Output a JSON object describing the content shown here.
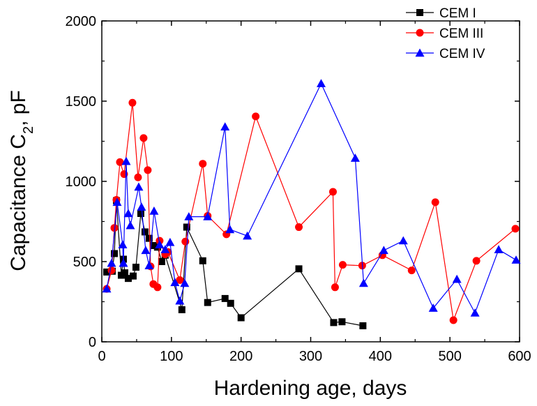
{
  "chart_data": {
    "type": "line",
    "title": "",
    "xlabel": "Hardening age, days",
    "ylabel_parts": [
      "Capacitance C",
      "2",
      ", pF"
    ],
    "xlim": [
      0,
      600
    ],
    "ylim": [
      0,
      2000
    ],
    "xticks": [
      "0",
      "100",
      "200",
      "300",
      "400",
      "500",
      "600"
    ],
    "yticks": [
      "0",
      "500",
      "1000",
      "1500",
      "2000"
    ],
    "legend_position": "top-right",
    "series": [
      {
        "name": "CEM I",
        "color": "#000000",
        "marker": "square",
        "points": [
          [
            7,
            435
          ],
          [
            15,
            440
          ],
          [
            18,
            550
          ],
          [
            21,
            880
          ],
          [
            28,
            415
          ],
          [
            31,
            515
          ],
          [
            33,
            430
          ],
          [
            38,
            395
          ],
          [
            45,
            410
          ],
          [
            49,
            465
          ],
          [
            56,
            800
          ],
          [
            62,
            685
          ],
          [
            68,
            645
          ],
          [
            74,
            600
          ],
          [
            80,
            590
          ],
          [
            86,
            500
          ],
          [
            91,
            540
          ],
          [
            115,
            200
          ],
          [
            122,
            715
          ],
          [
            145,
            505
          ],
          [
            152,
            245
          ],
          [
            177,
            270
          ],
          [
            185,
            240
          ],
          [
            200,
            150
          ],
          [
            283,
            455
          ],
          [
            333,
            120
          ],
          [
            345,
            125
          ],
          [
            375,
            100
          ]
        ]
      },
      {
        "name": "CEM III",
        "color": "#ff0000",
        "marker": "circle",
        "points": [
          [
            7,
            330
          ],
          [
            14,
            445
          ],
          [
            18,
            710
          ],
          [
            21,
            885
          ],
          [
            26,
            1120
          ],
          [
            32,
            1045
          ],
          [
            44,
            1490
          ],
          [
            52,
            1025
          ],
          [
            60,
            1270
          ],
          [
            66,
            1070
          ],
          [
            70,
            470
          ],
          [
            74,
            360
          ],
          [
            80,
            340
          ],
          [
            83,
            630
          ],
          [
            91,
            545
          ],
          [
            95,
            560
          ],
          [
            112,
            385
          ],
          [
            120,
            625
          ],
          [
            145,
            1110
          ],
          [
            152,
            785
          ],
          [
            179,
            670
          ],
          [
            221,
            1405
          ],
          [
            283,
            715
          ],
          [
            332,
            935
          ],
          [
            335,
            340
          ],
          [
            346,
            480
          ],
          [
            374,
            475
          ],
          [
            403,
            540
          ],
          [
            445,
            445
          ],
          [
            479,
            870
          ],
          [
            505,
            135
          ],
          [
            538,
            505
          ],
          [
            594,
            705
          ]
        ]
      },
      {
        "name": "CEM IV",
        "color": "#0000ff",
        "marker": "triangle",
        "points": [
          [
            7,
            330
          ],
          [
            14,
            490
          ],
          [
            22,
            870
          ],
          [
            30,
            605
          ],
          [
            31,
            490
          ],
          [
            35,
            1125
          ],
          [
            38,
            800
          ],
          [
            41,
            725
          ],
          [
            53,
            965
          ],
          [
            57,
            840
          ],
          [
            63,
            570
          ],
          [
            68,
            475
          ],
          [
            75,
            815
          ],
          [
            83,
            605
          ],
          [
            91,
            575
          ],
          [
            98,
            620
          ],
          [
            105,
            370
          ],
          [
            112,
            255
          ],
          [
            119,
            365
          ],
          [
            125,
            780
          ],
          [
            152,
            780
          ],
          [
            177,
            1340
          ],
          [
            184,
            700
          ],
          [
            209,
            660
          ],
          [
            315,
            1610
          ],
          [
            364,
            1145
          ],
          [
            376,
            365
          ],
          [
            405,
            570
          ],
          [
            433,
            630
          ],
          [
            476,
            210
          ],
          [
            510,
            390
          ],
          [
            536,
            180
          ],
          [
            570,
            575
          ],
          [
            595,
            510
          ]
        ]
      }
    ]
  }
}
